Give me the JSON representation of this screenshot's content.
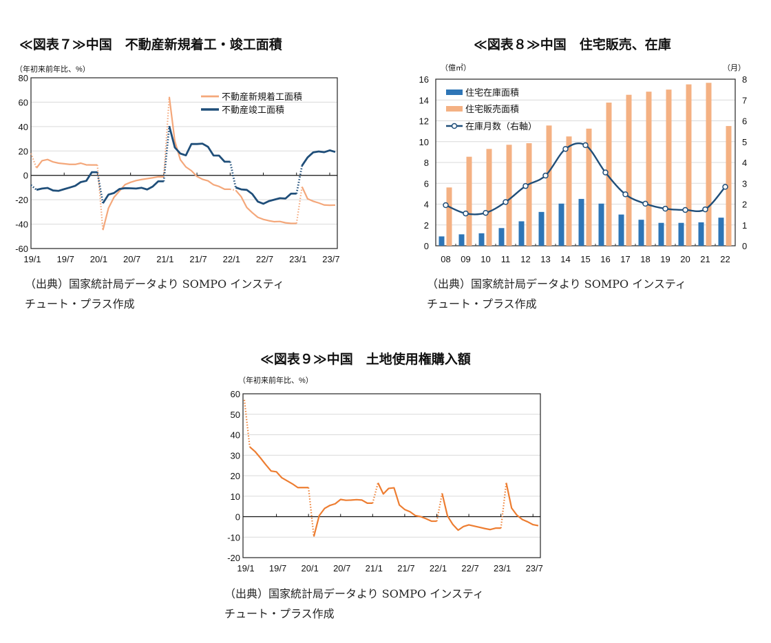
{
  "chart_data": [
    {
      "type": "line",
      "title": "≪図表７≫中国　不動産新規着工・竣工面積",
      "unit_label": "（年初来前年比、%）",
      "source": [
        "（出典）国家統計局データより SOMPO インスティ",
        "チュート・プラス作成"
      ],
      "ylim": [
        -60,
        80
      ],
      "yticks": [
        80,
        60,
        40,
        20,
        0,
        -20,
        -40,
        -60
      ],
      "xtick_labels": [
        "19/1",
        "19/7",
        "20/1",
        "20/7",
        "21/1",
        "21/7",
        "22/1",
        "22/7",
        "23/1",
        "23/7"
      ],
      "x_start": "19/1",
      "x_end": "23/8",
      "grid": true,
      "legend": "top-right",
      "series": [
        {
          "name": "不動産新規着工面積",
          "color": "#F4A77A",
          "values": [
            18,
            6,
            12,
            13,
            11,
            10,
            9.5,
            9,
            9,
            10,
            8.6,
            8.5,
            8.5,
            -44.9,
            -27,
            -18,
            -12.8,
            -7.6,
            -5.7,
            -4.3,
            -3.4,
            -2.7,
            -2,
            -1.2,
            -1.2,
            64.3,
            28.2,
            12.8,
            6.9,
            3.8,
            -0.9,
            -3.2,
            -4.5,
            -7.7,
            -9.1,
            -11.4,
            -11.4,
            -12.2,
            -17.5,
            -26.3,
            -30.6,
            -34.4,
            -36.1,
            -37.2,
            -38,
            -37.8,
            -38.9,
            -39.4,
            -39.4,
            -9.4,
            -19.2,
            -21.2,
            -22.6,
            -24.3,
            -24.5,
            -24.4
          ]
        },
        {
          "name": "不動産竣工面積",
          "color": "#1F4E79",
          "values": [
            -8,
            -11.9,
            -10.8,
            -10.3,
            -12.4,
            -12.7,
            -11.3,
            -10,
            -8.6,
            -5.5,
            -4.5,
            2.6,
            2.6,
            -22.9,
            -15.8,
            -14.5,
            -11.2,
            -10.5,
            -10.6,
            -10.8,
            -10.2,
            -11.6,
            -9.2,
            -4.9,
            -4.9,
            40.4,
            22.9,
            17.9,
            16.4,
            25.7,
            25.7,
            26,
            23.4,
            16.3,
            16.2,
            11.2,
            11.2,
            -9.9,
            -11.5,
            -11.9,
            -15.3,
            -21.5,
            -23.3,
            -21.1,
            -19.9,
            -18.7,
            -19,
            -15,
            -15,
            8,
            14.7,
            18.8,
            19.6,
            19,
            20.5,
            19.2
          ]
        }
      ]
    },
    {
      "type": "bar",
      "title": "≪図表８≫中国　住宅販売、在庫",
      "unit_label_left": "（億㎡）",
      "unit_label_right": "（月）",
      "source": [
        "（出典）国家統計局データより SOMPO インスティ",
        "チュート・プラス作成"
      ],
      "categories": [
        "08",
        "09",
        "10",
        "11",
        "12",
        "13",
        "14",
        "15",
        "16",
        "17",
        "18",
        "19",
        "20",
        "21",
        "22"
      ],
      "ylim": [
        0,
        16
      ],
      "y2lim": [
        0,
        8
      ],
      "yticks": [
        16,
        14,
        12,
        10,
        8,
        6,
        4,
        2,
        0
      ],
      "y2ticks": [
        8,
        7,
        6,
        5,
        4,
        3,
        2,
        1,
        0
      ],
      "grid": true,
      "legend": "top-left",
      "series": [
        {
          "name": "住宅在庫面積",
          "type": "bar",
          "axis": "left",
          "color": "#2E75B6",
          "values": [
            0.9,
            1.1,
            1.2,
            1.7,
            2.35,
            3.25,
            4.05,
            4.5,
            4.05,
            3.0,
            2.5,
            2.2,
            2.2,
            2.25,
            2.7
          ]
        },
        {
          "name": "住宅販売面積",
          "type": "bar",
          "axis": "left",
          "color": "#F4B183",
          "values": [
            5.6,
            8.55,
            9.3,
            9.7,
            9.85,
            11.55,
            10.5,
            11.25,
            13.75,
            14.5,
            14.8,
            15.0,
            15.5,
            15.65,
            11.5
          ]
        },
        {
          "name": "在庫月数（右軸）",
          "type": "line",
          "axis": "right",
          "color": "#1F4E79",
          "values": [
            1.95,
            1.55,
            1.58,
            2.1,
            2.87,
            3.37,
            4.65,
            4.83,
            3.52,
            2.47,
            2.02,
            1.78,
            1.72,
            1.75,
            2.83
          ]
        }
      ]
    },
    {
      "type": "line",
      "title": "≪図表９≫中国　土地使用権購入額",
      "unit_label": "（年初来前年比、%）",
      "source": [
        "（出典）国家統計局データより SOMPO インスティ",
        "チュート・プラス作成"
      ],
      "ylim": [
        -20,
        60
      ],
      "yticks": [
        60,
        50,
        40,
        30,
        20,
        10,
        0,
        -10,
        -20
      ],
      "xtick_labels": [
        "19/1",
        "19/7",
        "20/1",
        "20/7",
        "21/1",
        "21/7",
        "22/1",
        "22/7",
        "23/1",
        "23/7"
      ],
      "x_start": "19/1",
      "x_end": "23/8",
      "grid": true,
      "series": [
        {
          "color": "#ED7D31",
          "values": [
            57,
            34.1,
            31.8,
            28.7,
            25.4,
            22.3,
            21.9,
            19,
            17.5,
            16,
            14.2,
            14.2,
            14.2,
            -9.7,
            0.5,
            4,
            5.5,
            6.3,
            8.4,
            8,
            8.1,
            8.3,
            8.1,
            6.6,
            6.6,
            16.5,
            11.1,
            13.8,
            14.1,
            5.7,
            3.5,
            2.4,
            0.5,
            0,
            -1,
            -2.2,
            -2.2,
            11.4,
            0.4,
            -3.8,
            -6.6,
            -4.8,
            -4,
            -4.6,
            -5.2,
            -5.8,
            -6.3,
            -5.6,
            -5.6,
            16.5,
            4.2,
            0.7,
            -1.4,
            -2.5,
            -3.9,
            -4.4
          ]
        }
      ]
    }
  ]
}
